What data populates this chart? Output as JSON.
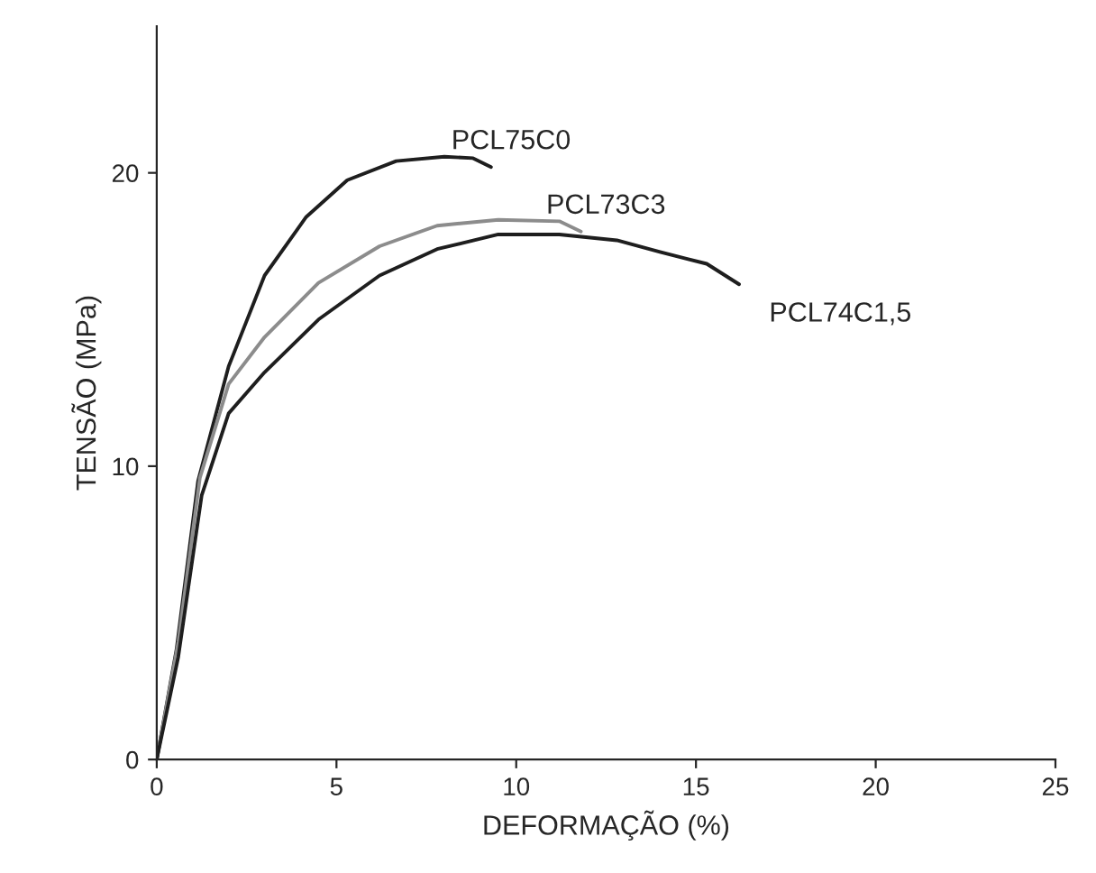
{
  "chart_data": {
    "type": "line",
    "xlabel": "DEFORMAÇÃO (%)",
    "ylabel": "TENSÃO (MPa)",
    "xlim": [
      0,
      25
    ],
    "xticks": [
      0,
      5,
      10,
      15,
      20,
      25
    ],
    "ylim": [
      0,
      25
    ],
    "yticks": [
      0,
      10,
      20
    ],
    "grid": false,
    "legend": false,
    "marker": "none",
    "line_style": "solid",
    "series": [
      {
        "name": "PCL75C0",
        "color": "#1e1e1e",
        "x": [
          0,
          0.55,
          1.15,
          2.0,
          3.0,
          4.16,
          5.3,
          6.66,
          8.0,
          8.8,
          9.3
        ],
        "values": [
          0,
          3.75,
          9.5,
          13.4,
          16.5,
          18.5,
          19.75,
          20.4,
          20.55,
          20.5,
          20.2
        ]
      },
      {
        "name": "PCL73C3",
        "color": "#8c8c8c",
        "x": [
          0,
          0.6,
          1.2,
          2.0,
          3.0,
          4.5,
          6.2,
          7.8,
          9.5,
          11.2,
          11.8
        ],
        "values": [
          0,
          4,
          9.6,
          12.8,
          14.4,
          16.25,
          17.5,
          18.2,
          18.4,
          18.35,
          18.0
        ]
      },
      {
        "name": "PCL74C1,5",
        "color": "#1e1e1e",
        "x": [
          0,
          0.6,
          1.25,
          2.0,
          3.0,
          4.5,
          6.2,
          7.8,
          9.5,
          11.2,
          12.8,
          14.0,
          15.3,
          16.2
        ],
        "values": [
          0,
          3.5,
          9,
          11.8,
          13.2,
          15.0,
          16.5,
          17.4,
          17.9,
          17.9,
          17.7,
          17.3,
          16.9,
          16.2
        ]
      }
    ]
  }
}
